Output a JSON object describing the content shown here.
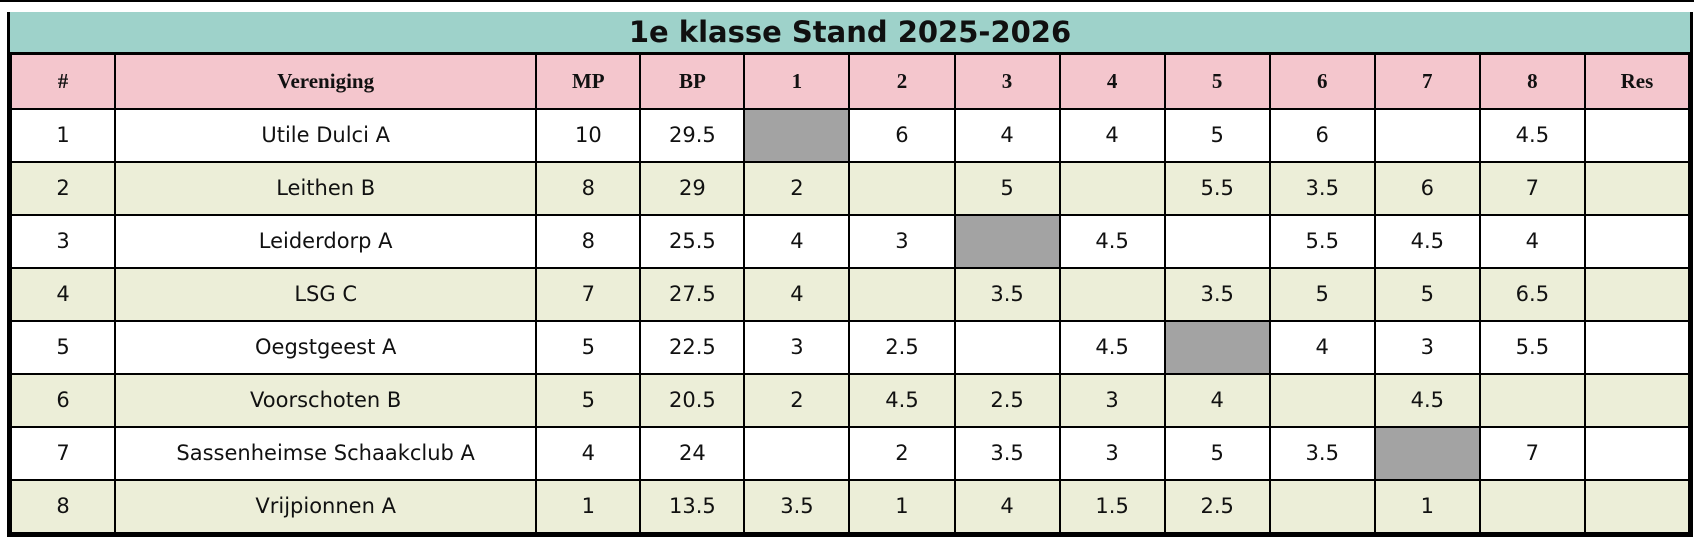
{
  "title": "1e klasse Stand 2025-2026",
  "colors": {
    "title_bg": "#9ed2ca",
    "header_bg": "#f4c6cd",
    "row_bg": "#ffffff",
    "row_alt_bg": "#eceed8",
    "self_cell_bg": "#a3a3a3",
    "border": "#000000"
  },
  "chart_data": {
    "type": "table",
    "title": "1e klasse Stand 2025-2026",
    "columns": [
      "#",
      "Vereniging",
      "MP",
      "BP",
      "1",
      "2",
      "3",
      "4",
      "5",
      "6",
      "7",
      "8",
      "Res"
    ],
    "rows": [
      [
        "1",
        "Utile Dulci A",
        "10",
        "29.5",
        null,
        "6",
        "4",
        "4",
        "5",
        "6",
        "",
        "4.5",
        ""
      ],
      [
        "2",
        "Leithen B",
        "8",
        "29",
        "2",
        null,
        "5",
        "",
        "5.5",
        "3.5",
        "6",
        "7",
        ""
      ],
      [
        "3",
        "Leiderdorp A",
        "8",
        "25.5",
        "4",
        "3",
        null,
        "4.5",
        "",
        "5.5",
        "4.5",
        "4",
        ""
      ],
      [
        "4",
        "LSG C",
        "7",
        "27.5",
        "4",
        "",
        "3.5",
        null,
        "3.5",
        "5",
        "5",
        "6.5",
        ""
      ],
      [
        "5",
        "Oegstgeest A",
        "5",
        "22.5",
        "3",
        "2.5",
        "",
        "4.5",
        null,
        "4",
        "3",
        "5.5",
        ""
      ],
      [
        "6",
        "Voorschoten B",
        "5",
        "20.5",
        "2",
        "4.5",
        "2.5",
        "3",
        "4",
        null,
        "4.5",
        "",
        ""
      ],
      [
        "7",
        "Sassenheimse Schaakclub A",
        "4",
        "24",
        "",
        "2",
        "3.5",
        "3",
        "5",
        "3.5",
        null,
        "7",
        ""
      ],
      [
        "8",
        "Vrijpionnen A",
        "1",
        "13.5",
        "3.5",
        "1",
        "4",
        "1.5",
        "2.5",
        "",
        "1",
        null,
        ""
      ]
    ],
    "notes": {
      "self_cell_marker": "null values are the gray diagonal self-match cells",
      "legend": "MP = matchpunten, BP = bordpunten, Res = reserve/result column (empty)"
    }
  }
}
